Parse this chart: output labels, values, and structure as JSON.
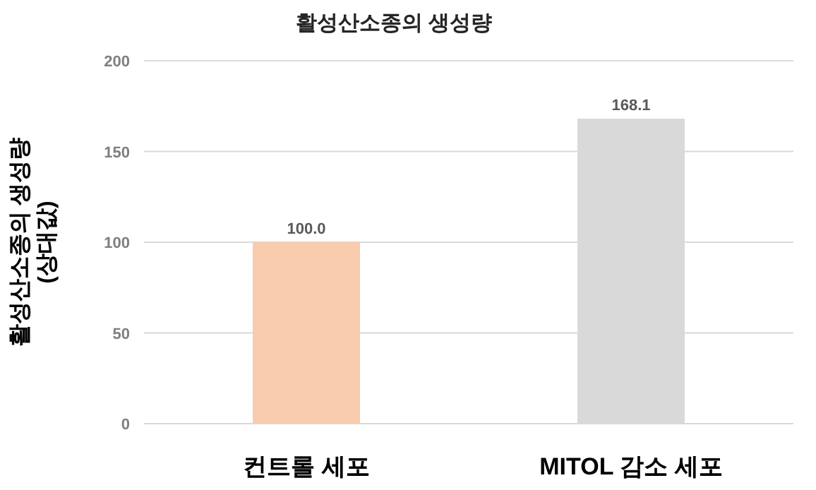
{
  "chart_data": {
    "type": "bar",
    "title": "활성산소종의 생성량",
    "ylabel": "활성산소종의 생성량\n(상대값)",
    "categories": [
      "컨트롤 세포",
      "MITOL 감소 세포"
    ],
    "values": [
      100,
      168.1
    ],
    "value_labels": [
      "100.0",
      "168.1"
    ],
    "colors": [
      "#f8cbad",
      "#d9d9d9"
    ],
    "ylim": [
      0,
      200
    ],
    "yticks": [
      0,
      50,
      100,
      150,
      200
    ],
    "grid": "y"
  }
}
